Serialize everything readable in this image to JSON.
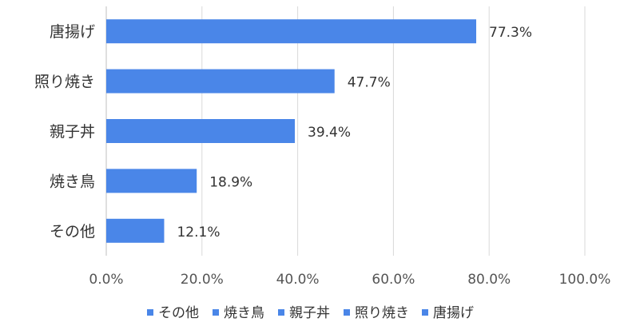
{
  "chart_data": {
    "type": "bar",
    "orientation": "horizontal",
    "categories": [
      "唐揚げ",
      "照り焼き",
      "親子丼",
      "焼き鳥",
      "その他"
    ],
    "values": [
      77.3,
      47.7,
      39.4,
      18.9,
      12.1
    ],
    "data_labels": [
      "77.3%",
      "47.7%",
      "39.4%",
      "18.9%",
      "12.1%"
    ],
    "xlim": [
      0,
      100
    ],
    "x_ticks": [
      0,
      20,
      40,
      60,
      80,
      100
    ],
    "x_tick_labels": [
      "0.0%",
      "20.0%",
      "40.0%",
      "60.0%",
      "80.0%",
      "100.0%"
    ],
    "grid": "vertical",
    "legend": {
      "placement": "bottom",
      "entries": [
        "その他",
        "焼き鳥",
        "親子丼",
        "照り焼き",
        "唐揚げ"
      ]
    },
    "colors": {
      "bar": "#4a86e8",
      "grid": "#d9d9d9",
      "axis": "#bfbfbf"
    }
  }
}
